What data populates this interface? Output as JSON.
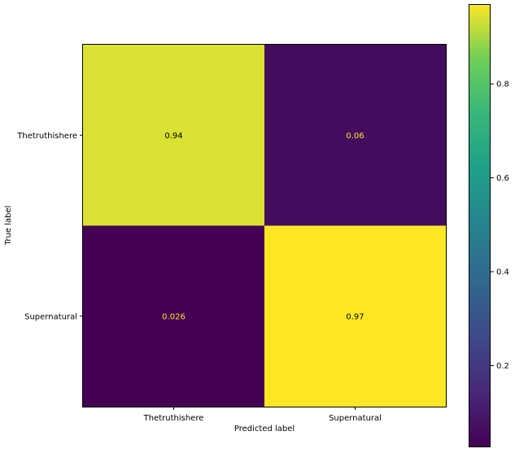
{
  "chart_data": {
    "type": "heatmap",
    "title": "",
    "xlabel": "Predicted label",
    "ylabel": "True label",
    "x_categories": [
      "Thetruthishere",
      "Supernatural"
    ],
    "y_categories": [
      "Thetruthishere",
      "Supernatural"
    ],
    "values": [
      [
        0.94,
        0.06
      ],
      [
        0.026,
        0.97
      ]
    ],
    "cell_labels": [
      [
        "0.94",
        "0.06"
      ],
      [
        "0.026",
        "0.97"
      ]
    ],
    "colormap": "viridis",
    "colorbar": {
      "range": [
        0.026,
        0.97
      ],
      "ticks": [
        0.2,
        0.4,
        0.6,
        0.8
      ],
      "tick_labels": [
        "0.2",
        "0.4",
        "0.6",
        "0.8"
      ]
    },
    "grid": false
  }
}
